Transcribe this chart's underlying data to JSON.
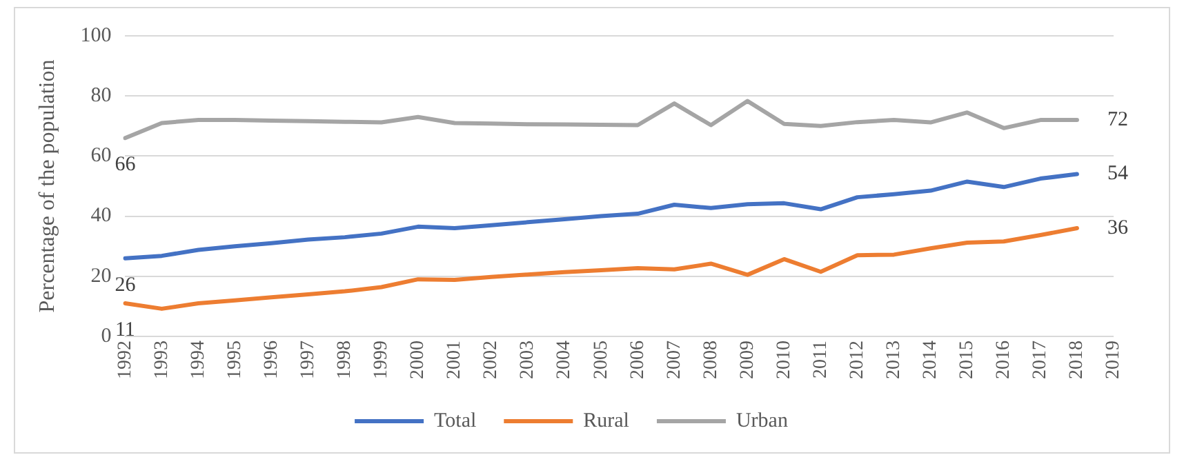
{
  "chart_data": {
    "type": "line",
    "ylabel": "Percentage of the population",
    "categories": [
      "1992",
      "1993",
      "1994",
      "1995",
      "1996",
      "1997",
      "1998",
      "1999",
      "2000",
      "2001",
      "2002",
      "2003",
      "2004",
      "2005",
      "2006",
      "2007",
      "2008",
      "2009",
      "2010",
      "2011",
      "2012",
      "2013",
      "2014",
      "2015",
      "2016",
      "2017",
      "2018",
      "2019"
    ],
    "series": [
      {
        "name": "Total",
        "color": "#4472c4",
        "values": [
          26,
          26.8,
          28.8,
          30,
          31,
          32.2,
          33,
          34.2,
          36.5,
          36,
          37,
          38,
          39,
          40,
          40.8,
          43.8,
          42.7,
          44,
          44.3,
          42.3,
          46.3,
          47.3,
          48.5,
          51.5,
          49.7,
          52.5,
          54,
          null
        ],
        "value_labels": [
          "26",
          null,
          null,
          null,
          null,
          null,
          null,
          null,
          null,
          null,
          null,
          null,
          null,
          null,
          null,
          null,
          null,
          null,
          null,
          null,
          null,
          null,
          null,
          null,
          null,
          null,
          "54",
          null
        ]
      },
      {
        "name": "Rural",
        "color": "#ed7d31",
        "values": [
          11,
          9.2,
          11,
          12,
          13,
          14,
          15,
          16.4,
          19,
          18.8,
          19.8,
          20.6,
          21.4,
          22,
          22.7,
          22.3,
          24.2,
          20.5,
          25.7,
          21.5,
          27,
          27.2,
          29.3,
          31.2,
          31.6,
          33.7,
          36,
          null
        ],
        "value_labels": [
          "11",
          null,
          null,
          null,
          null,
          null,
          null,
          null,
          null,
          null,
          null,
          null,
          null,
          null,
          null,
          null,
          null,
          null,
          null,
          null,
          null,
          null,
          null,
          null,
          null,
          null,
          "36",
          null
        ]
      },
      {
        "name": "Urban",
        "color": "#a5a5a5",
        "values": [
          66,
          71,
          72,
          72,
          71.8,
          71.6,
          71.4,
          71.2,
          73,
          71,
          70.8,
          70.6,
          70.5,
          70.4,
          70.3,
          77.5,
          70.3,
          78.3,
          70.7,
          70,
          71.3,
          72,
          71.2,
          74.5,
          69.3,
          72,
          72,
          null
        ],
        "value_labels": [
          "66",
          null,
          null,
          null,
          null,
          null,
          null,
          null,
          null,
          null,
          null,
          null,
          null,
          null,
          null,
          null,
          null,
          null,
          null,
          null,
          null,
          null,
          null,
          null,
          null,
          null,
          "72",
          null
        ]
      }
    ],
    "ylim": [
      0,
      100
    ],
    "yticks": [
      0,
      20,
      40,
      60,
      80,
      100
    ],
    "grid": "y",
    "legend": "bottom",
    "marker": "none",
    "line_style": "solid"
  }
}
